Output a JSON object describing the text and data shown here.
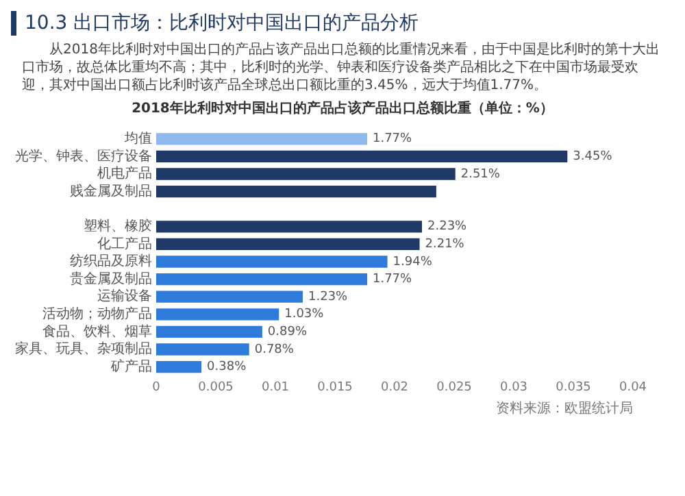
{
  "chart_data": {
    "type": "bar",
    "orientation": "horizontal",
    "title": "10.3 出口市场：比利时对中国出口的产品分析",
    "subtitle": "从2018年比利时对中国出口的产品占该产品出口总额的比重情况来看，由于中国是比利时的第十大出口市场，故总体比重均不高；其中，比利时的光学、钟表和医疗设备类产品相比之下在中国市场最受欢迎，其对中国出口额占比利时该产品全球总出口额比重的3.45%，远大于均值1.77%。",
    "annotations": [
      "2018年比利时对中国出口的产品占该产品出口总额比重（单位：%）",
      "资料来源：欧盟统计局"
    ],
    "categories": [
      "均值",
      "光学、钟表、医疗设备",
      "机电产品",
      "贱金属及制品",
      null,
      "塑料、橡胶",
      "化工产品",
      "纺织品及原料",
      "贵金属及制品",
      "运输设备",
      "活动物；动物产品",
      "食品、饮料、烟草",
      "家具、玩具、杂项制品",
      "矿产品"
    ],
    "values": [
      0.0177,
      0.0345,
      0.0251,
      0.0235,
      null,
      0.0223,
      0.0221,
      0.0194,
      0.0177,
      0.0123,
      0.0103,
      0.0089,
      0.0078,
      0.0038
    ],
    "value_labels": [
      "1.77%",
      "3.45%",
      "2.51%",
      null,
      null,
      "2.23%",
      "2.21%",
      "1.94%",
      "1.77%",
      "1.23%",
      "1.03%",
      "0.89%",
      "0.78%",
      "0.38%"
    ],
    "colors": [
      "#8fb8ee",
      "#1f3a66",
      "#1f3a66",
      "#1f3a66",
      "#1f3a66",
      "#1f3a66",
      "#1f3a66",
      "#2f7bdc",
      "#2f7bdc",
      "#2f7bdc",
      "#2f7bdc",
      "#2f7bdc",
      "#2f7bdc",
      "#2f7bdc"
    ],
    "xlim": [
      0,
      0.04
    ],
    "xticks": [
      0,
      0.005,
      0.01,
      0.015,
      0.02,
      0.025,
      0.03,
      0.035,
      0.04
    ],
    "grid": false,
    "legend": false
  }
}
